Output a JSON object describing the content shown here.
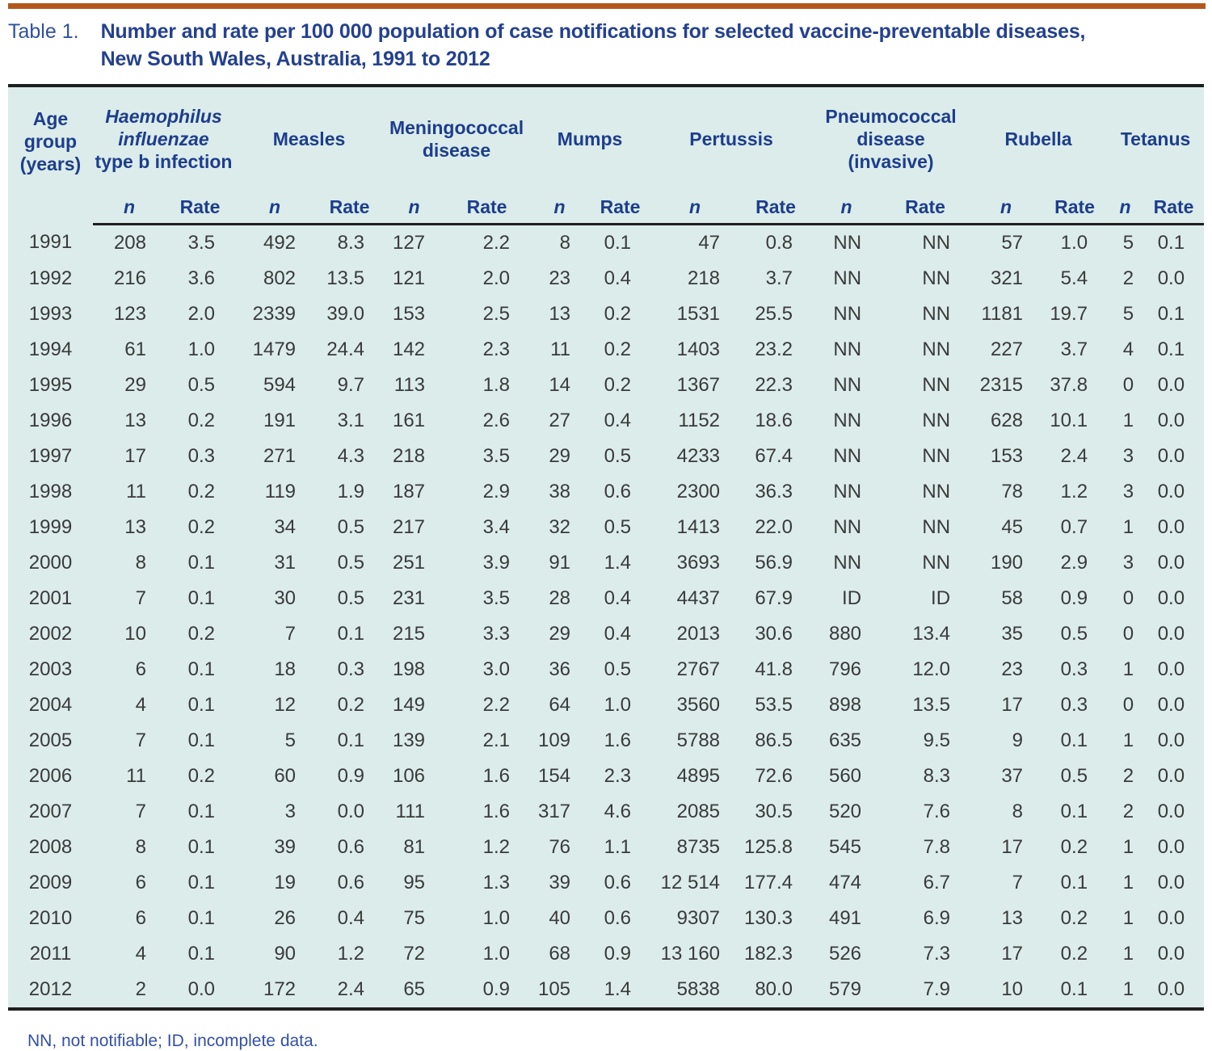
{
  "page": {
    "accent_bar_color": "#b3581c",
    "table_background": "#dbeceb",
    "header_text_color": "#1e3d8c",
    "body_text_color": "#3a3a3a"
  },
  "heading": {
    "label": "Table 1.",
    "title_line1": "Number and rate per 100 000 population of case notifications for selected vaccine-preventable diseases,",
    "title_line2": "New South Wales, Australia, 1991 to 2012"
  },
  "table": {
    "age_header": "Age group (years)",
    "subheader_n": "n",
    "subheader_rate": "Rate",
    "groups": {
      "hib_italic": "Haemophilus influenzae",
      "hib_rest": "type b infection",
      "measles": "Measles",
      "meningococcal": "Meningococcal disease",
      "mumps": "Mumps",
      "pertussis": "Pertussis",
      "pneumococcal": "Pneumococcal disease (invasive)",
      "rubella": "Rubella",
      "tetanus": "Tetanus"
    },
    "rows": [
      {
        "year": "1991",
        "values": [
          "208",
          "3.5",
          "492",
          "8.3",
          "127",
          "2.2",
          "8",
          "0.1",
          "47",
          "0.8",
          "NN",
          "NN",
          "57",
          "1.0",
          "5",
          "0.1"
        ]
      },
      {
        "year": "1992",
        "values": [
          "216",
          "3.6",
          "802",
          "13.5",
          "121",
          "2.0",
          "23",
          "0.4",
          "218",
          "3.7",
          "NN",
          "NN",
          "321",
          "5.4",
          "2",
          "0.0"
        ]
      },
      {
        "year": "1993",
        "values": [
          "123",
          "2.0",
          "2339",
          "39.0",
          "153",
          "2.5",
          "13",
          "0.2",
          "1531",
          "25.5",
          "NN",
          "NN",
          "1181",
          "19.7",
          "5",
          "0.1"
        ]
      },
      {
        "year": "1994",
        "values": [
          "61",
          "1.0",
          "1479",
          "24.4",
          "142",
          "2.3",
          "11",
          "0.2",
          "1403",
          "23.2",
          "NN",
          "NN",
          "227",
          "3.7",
          "4",
          "0.1"
        ]
      },
      {
        "year": "1995",
        "values": [
          "29",
          "0.5",
          "594",
          "9.7",
          "113",
          "1.8",
          "14",
          "0.2",
          "1367",
          "22.3",
          "NN",
          "NN",
          "2315",
          "37.8",
          "0",
          "0.0"
        ]
      },
      {
        "year": "1996",
        "values": [
          "13",
          "0.2",
          "191",
          "3.1",
          "161",
          "2.6",
          "27",
          "0.4",
          "1152",
          "18.6",
          "NN",
          "NN",
          "628",
          "10.1",
          "1",
          "0.0"
        ]
      },
      {
        "year": "1997",
        "values": [
          "17",
          "0.3",
          "271",
          "4.3",
          "218",
          "3.5",
          "29",
          "0.5",
          "4233",
          "67.4",
          "NN",
          "NN",
          "153",
          "2.4",
          "3",
          "0.0"
        ]
      },
      {
        "year": "1998",
        "values": [
          "11",
          "0.2",
          "119",
          "1.9",
          "187",
          "2.9",
          "38",
          "0.6",
          "2300",
          "36.3",
          "NN",
          "NN",
          "78",
          "1.2",
          "3",
          "0.0"
        ]
      },
      {
        "year": "1999",
        "values": [
          "13",
          "0.2",
          "34",
          "0.5",
          "217",
          "3.4",
          "32",
          "0.5",
          "1413",
          "22.0",
          "NN",
          "NN",
          "45",
          "0.7",
          "1",
          "0.0"
        ]
      },
      {
        "year": "2000",
        "values": [
          "8",
          "0.1",
          "31",
          "0.5",
          "251",
          "3.9",
          "91",
          "1.4",
          "3693",
          "56.9",
          "NN",
          "NN",
          "190",
          "2.9",
          "3",
          "0.0"
        ]
      },
      {
        "year": "2001",
        "values": [
          "7",
          "0.1",
          "30",
          "0.5",
          "231",
          "3.5",
          "28",
          "0.4",
          "4437",
          "67.9",
          "ID",
          "ID",
          "58",
          "0.9",
          "0",
          "0.0"
        ]
      },
      {
        "year": "2002",
        "values": [
          "10",
          "0.2",
          "7",
          "0.1",
          "215",
          "3.3",
          "29",
          "0.4",
          "2013",
          "30.6",
          "880",
          "13.4",
          "35",
          "0.5",
          "0",
          "0.0"
        ]
      },
      {
        "year": "2003",
        "values": [
          "6",
          "0.1",
          "18",
          "0.3",
          "198",
          "3.0",
          "36",
          "0.5",
          "2767",
          "41.8",
          "796",
          "12.0",
          "23",
          "0.3",
          "1",
          "0.0"
        ]
      },
      {
        "year": "2004",
        "values": [
          "4",
          "0.1",
          "12",
          "0.2",
          "149",
          "2.2",
          "64",
          "1.0",
          "3560",
          "53.5",
          "898",
          "13.5",
          "17",
          "0.3",
          "0",
          "0.0"
        ]
      },
      {
        "year": "2005",
        "values": [
          "7",
          "0.1",
          "5",
          "0.1",
          "139",
          "2.1",
          "109",
          "1.6",
          "5788",
          "86.5",
          "635",
          "9.5",
          "9",
          "0.1",
          "1",
          "0.0"
        ]
      },
      {
        "year": "2006",
        "values": [
          "11",
          "0.2",
          "60",
          "0.9",
          "106",
          "1.6",
          "154",
          "2.3",
          "4895",
          "72.6",
          "560",
          "8.3",
          "37",
          "0.5",
          "2",
          "0.0"
        ]
      },
      {
        "year": "2007",
        "values": [
          "7",
          "0.1",
          "3",
          "0.0",
          "111",
          "1.6",
          "317",
          "4.6",
          "2085",
          "30.5",
          "520",
          "7.6",
          "8",
          "0.1",
          "2",
          "0.0"
        ]
      },
      {
        "year": "2008",
        "values": [
          "8",
          "0.1",
          "39",
          "0.6",
          "81",
          "1.2",
          "76",
          "1.1",
          "8735",
          "125.8",
          "545",
          "7.8",
          "17",
          "0.2",
          "1",
          "0.0"
        ]
      },
      {
        "year": "2009",
        "values": [
          "6",
          "0.1",
          "19",
          "0.6",
          "95",
          "1.3",
          "39",
          "0.6",
          "12 514",
          "177.4",
          "474",
          "6.7",
          "7",
          "0.1",
          "1",
          "0.0"
        ]
      },
      {
        "year": "2010",
        "values": [
          "6",
          "0.1",
          "26",
          "0.4",
          "75",
          "1.0",
          "40",
          "0.6",
          "9307",
          "130.3",
          "491",
          "6.9",
          "13",
          "0.2",
          "1",
          "0.0"
        ]
      },
      {
        "year": "2011",
        "values": [
          "4",
          "0.1",
          "90",
          "1.2",
          "72",
          "1.0",
          "68",
          "0.9",
          "13 160",
          "182.3",
          "526",
          "7.3",
          "17",
          "0.2",
          "1",
          "0.0"
        ]
      },
      {
        "year": "2012",
        "values": [
          "2",
          "0.0",
          "172",
          "2.4",
          "65",
          "0.9",
          "105",
          "1.4",
          "5838",
          "80.0",
          "579",
          "7.9",
          "10",
          "0.1",
          "1",
          "0.0"
        ]
      }
    ]
  },
  "footnote": "NN, not notifiable; ID, incomplete data."
}
